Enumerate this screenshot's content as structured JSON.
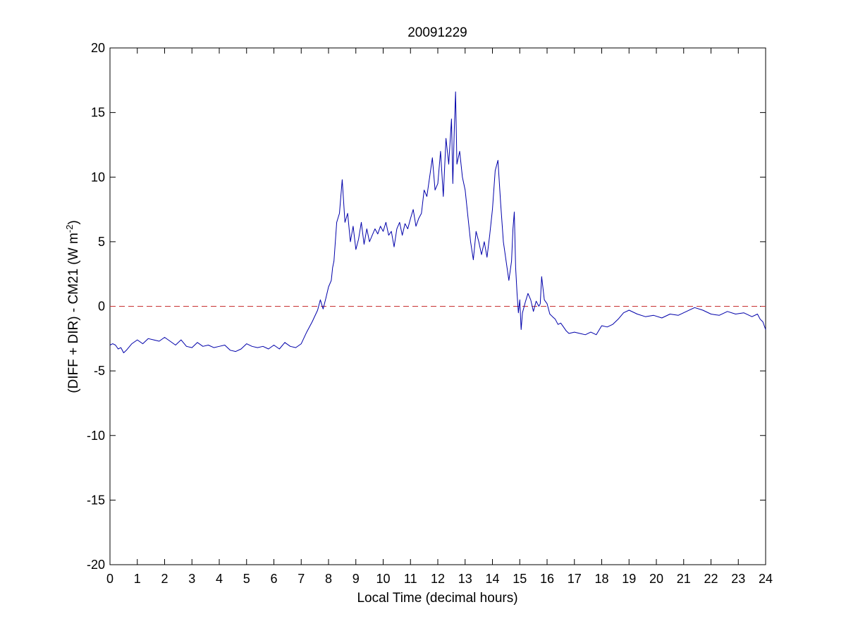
{
  "chart_data": {
    "type": "line",
    "title": "20091229",
    "xlabel": "Local Time (decimal hours)",
    "ylabel": {
      "main": "(DIFF + DIR) - CM21 (W m",
      "superscript": "-2",
      "tail": ")"
    },
    "xlim": [
      0,
      24
    ],
    "ylim": [
      -20,
      20
    ],
    "xticks": [
      0,
      1,
      2,
      3,
      4,
      5,
      6,
      7,
      8,
      9,
      10,
      11,
      12,
      13,
      14,
      15,
      16,
      17,
      18,
      19,
      20,
      21,
      22,
      23,
      24
    ],
    "yticks": [
      -20,
      -15,
      -10,
      -5,
      0,
      5,
      10,
      15,
      20
    ],
    "grid": false,
    "line_color": "#0000aa",
    "reference_line": {
      "y": 0,
      "style": "dashed",
      "color": "#c83232"
    },
    "series": [
      {
        "x": [
          0.0,
          0.1,
          0.2,
          0.3,
          0.4,
          0.5,
          0.6,
          0.8,
          1.0,
          1.2,
          1.4,
          1.6,
          1.8,
          2.0,
          2.2,
          2.4,
          2.6,
          2.8,
          3.0,
          3.2,
          3.4,
          3.6,
          3.8,
          4.0,
          4.2,
          4.4,
          4.6,
          4.8,
          5.0,
          5.2,
          5.4,
          5.6,
          5.8,
          6.0,
          6.2,
          6.4,
          6.6,
          6.8,
          7.0,
          7.2,
          7.4,
          7.6,
          7.7,
          7.8,
          7.9,
          8.0,
          8.1,
          8.15,
          8.2,
          8.3,
          8.4,
          8.5,
          8.6,
          8.7,
          8.8,
          8.9,
          9.0,
          9.1,
          9.2,
          9.3,
          9.4,
          9.5,
          9.6,
          9.7,
          9.8,
          9.9,
          10.0,
          10.1,
          10.2,
          10.3,
          10.4,
          10.5,
          10.6,
          10.7,
          10.8,
          10.9,
          11.0,
          11.1,
          11.2,
          11.3,
          11.4,
          11.5,
          11.6,
          11.7,
          11.8,
          11.9,
          12.0,
          12.1,
          12.2,
          12.3,
          12.4,
          12.5,
          12.55,
          12.6,
          12.65,
          12.7,
          12.8,
          12.9,
          13.0,
          13.1,
          13.2,
          13.3,
          13.4,
          13.5,
          13.6,
          13.7,
          13.8,
          13.9,
          14.0,
          14.1,
          14.2,
          14.3,
          14.4,
          14.5,
          14.6,
          14.7,
          14.75,
          14.8,
          14.85,
          14.9,
          14.95,
          15.0,
          15.05,
          15.1,
          15.2,
          15.3,
          15.4,
          15.5,
          15.6,
          15.7,
          15.75,
          15.8,
          15.9,
          16.0,
          16.1,
          16.2,
          16.3,
          16.4,
          16.5,
          16.6,
          16.7,
          16.8,
          17.0,
          17.2,
          17.4,
          17.6,
          17.8,
          18.0,
          18.2,
          18.4,
          18.6,
          18.8,
          19.0,
          19.3,
          19.6,
          19.9,
          20.2,
          20.5,
          20.8,
          21.1,
          21.4,
          21.7,
          22.0,
          22.3,
          22.6,
          22.9,
          23.2,
          23.5,
          23.7,
          23.8,
          23.9,
          24.0
        ],
        "values": [
          -3.0,
          -2.9,
          -3.0,
          -3.3,
          -3.2,
          -3.6,
          -3.4,
          -2.9,
          -2.6,
          -2.9,
          -2.5,
          -2.6,
          -2.7,
          -2.4,
          -2.7,
          -3.0,
          -2.6,
          -3.1,
          -3.2,
          -2.8,
          -3.1,
          -3.0,
          -3.2,
          -3.1,
          -3.0,
          -3.4,
          -3.5,
          -3.3,
          -2.9,
          -3.1,
          -3.2,
          -3.1,
          -3.3,
          -3.0,
          -3.3,
          -2.8,
          -3.1,
          -3.2,
          -2.9,
          -2.0,
          -1.2,
          -0.3,
          0.5,
          -0.2,
          0.6,
          1.5,
          2.0,
          3.0,
          3.5,
          6.5,
          7.2,
          9.8,
          6.5,
          7.2,
          5.0,
          6.2,
          4.4,
          5.2,
          6.5,
          4.8,
          6.0,
          5.0,
          5.5,
          6.0,
          5.6,
          6.2,
          5.8,
          6.5,
          5.5,
          5.8,
          4.6,
          6.0,
          6.5,
          5.5,
          6.4,
          6.0,
          6.8,
          7.5,
          6.2,
          6.8,
          7.2,
          9.0,
          8.5,
          10.0,
          11.5,
          9.0,
          9.5,
          12.0,
          8.5,
          13.0,
          11.0,
          14.5,
          9.5,
          13.5,
          16.6,
          11.0,
          12.0,
          10.0,
          9.0,
          7.0,
          5.0,
          3.6,
          5.8,
          5.0,
          4.0,
          5.0,
          3.8,
          5.5,
          7.5,
          10.5,
          11.3,
          8.0,
          5.0,
          3.5,
          2.0,
          3.5,
          6.0,
          7.3,
          3.0,
          1.0,
          -0.5,
          0.5,
          -1.8,
          -0.5,
          0.3,
          1.0,
          0.5,
          -0.4,
          0.4,
          0.0,
          0.2,
          2.3,
          0.5,
          0.2,
          -0.6,
          -0.8,
          -1.0,
          -1.4,
          -1.3,
          -1.6,
          -1.9,
          -2.1,
          -2.0,
          -2.1,
          -2.2,
          -2.0,
          -2.2,
          -1.5,
          -1.6,
          -1.4,
          -1.0,
          -0.5,
          -0.3,
          -0.6,
          -0.8,
          -0.7,
          -0.9,
          -0.6,
          -0.7,
          -0.4,
          -0.1,
          -0.3,
          -0.6,
          -0.7,
          -0.4,
          -0.6,
          -0.5,
          -0.8,
          -0.6,
          -1.0,
          -1.2,
          -1.8
        ]
      }
    ]
  }
}
